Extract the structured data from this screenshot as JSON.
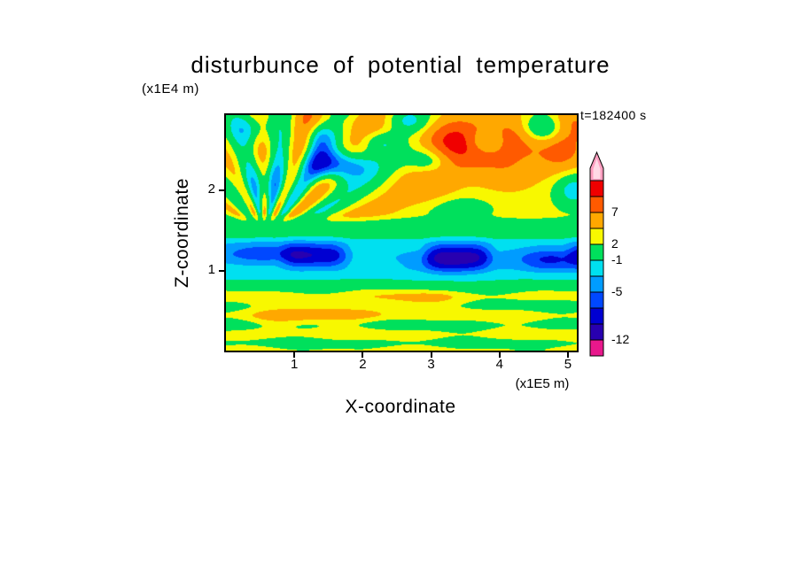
{
  "page": {
    "background": "#ffffff"
  },
  "title": "disturbunce of potential temperature",
  "annotations": {
    "time": "t=182400 s",
    "y_unit": "(x1E4 m)",
    "x_unit": "(x1E5 m)"
  },
  "axes": {
    "x_title": "X-coordinate",
    "y_title": "Z-coordinate",
    "x_ticks": [
      "1",
      "2",
      "3",
      "4",
      "5"
    ],
    "y_ticks": [
      "1",
      "2"
    ]
  },
  "colorbar": {
    "segments": [
      "#e8188c",
      "#2800b0",
      "#0000d2",
      "#0048ff",
      "#009cff",
      "#00e0f0",
      "#00e05c",
      "#f8f800",
      "#ffa800",
      "#ff5a00",
      "#f00000"
    ],
    "arrow_outer": "#ff9ec0",
    "arrow_inner": "#ffd9e6",
    "labels": [
      {
        "text": "-12",
        "boundary": 1
      },
      {
        "text": "-5",
        "boundary": 4
      },
      {
        "text": "-1",
        "boundary": 6
      },
      {
        "text": "2",
        "boundary": 7
      },
      {
        "text": "7",
        "boundary": 9
      }
    ]
  },
  "chart_data": {
    "type": "heatmap",
    "title": "disturbunce of potential temperature",
    "xlabel": "X-coordinate",
    "ylabel": "Z-coordinate",
    "x_units": "1E5 m",
    "z_units": "1E4 m",
    "time_label": "t=182400 s",
    "time_seconds": 182400,
    "x_range": [
      0,
      5.13
    ],
    "z_range": [
      0,
      2.946
    ],
    "x_tick_values": [
      1,
      2,
      3,
      4,
      5
    ],
    "z_tick_values": [
      1,
      2
    ],
    "colorbar_tick_values": [
      7,
      2,
      -1,
      -5,
      -12
    ],
    "levels": [
      -12,
      -9.5,
      -7,
      -5,
      -3,
      -1,
      2,
      4,
      7,
      10,
      13
    ],
    "colors": [
      "#e8188c",
      "#2800b0",
      "#0000d2",
      "#0048ff",
      "#009cff",
      "#00e0f0",
      "#00e05c",
      "#f8f800",
      "#ffa800",
      "#ff5a00",
      "#f00000",
      "#ff9ec0"
    ],
    "field_model": {
      "bands": [
        [
          0,
          2.6
        ],
        [
          0.09,
          1.0
        ],
        [
          0.2,
          3.1
        ],
        [
          0.32,
          1.0
        ],
        [
          0.44,
          3.2
        ],
        [
          0.56,
          1.1
        ],
        [
          0.68,
          3.0
        ],
        [
          0.8,
          0.6
        ],
        [
          0.93,
          -1.4
        ],
        [
          1.05,
          -2.2
        ],
        [
          1.18,
          -2.6
        ],
        [
          1.32,
          -2.2
        ],
        [
          1.45,
          -0.2
        ],
        [
          1.58,
          1.0
        ],
        [
          1.72,
          2.8
        ],
        [
          2.0,
          2.9
        ],
        [
          2.95,
          3.0
        ]
      ],
      "wobble": {
        "a1": 0.75,
        "f1x": 2.4,
        "f1z": 9.5,
        "p1": 1.0,
        "a2": 0.35,
        "f2x": 5.1,
        "f2z": -3.0,
        "fade0": 0.75,
        "fade1": 0.95
      },
      "cold_band": {
        "z": 1.19,
        "sz": 0.155,
        "amp": -5.8,
        "fx": 3.0,
        "ph": 3.95,
        "s0": -0.25,
        "s1": 0.85
      },
      "fan": {
        "zmin": 1.45,
        "x0": 0.55,
        "z0": 1.42,
        "cx": 1.25,
        "w": 1.55,
        "amp": 3.8,
        "freq": 13,
        "rad": 1.2,
        "ph": 0.6,
        "bias": -0.3,
        "fade0": 1.55,
        "fade1": 1.75
      },
      "blobs": [
        [
          1.62,
          2.32,
          0.3,
          0.13,
          -11
        ],
        [
          2.62,
          2.86,
          0.24,
          0.12,
          -8
        ],
        [
          4.62,
          2.78,
          0.24,
          0.13,
          -9
        ],
        [
          2.98,
          2.38,
          0.22,
          0.12,
          -5.5
        ],
        [
          3.78,
          2.62,
          0.18,
          0.1,
          -4.5
        ],
        [
          2.25,
          2.62,
          0.2,
          0.1,
          -4
        ],
        [
          5.08,
          2.02,
          0.2,
          0.16,
          -5.5
        ],
        [
          0.62,
          2.08,
          0.3,
          0.2,
          -4.5
        ],
        [
          0.35,
          2.78,
          0.2,
          0.14,
          -5
        ],
        [
          1.35,
          2.68,
          0.14,
          0.18,
          -4.5
        ],
        [
          3.45,
          1.78,
          0.3,
          0.1,
          -2.5
        ],
        [
          3.35,
          2.6,
          0.36,
          0.22,
          8.5
        ],
        [
          4.32,
          2.72,
          0.3,
          0.18,
          5.5
        ],
        [
          2.52,
          2.82,
          0.26,
          0.13,
          4.5
        ],
        [
          4.92,
          2.5,
          0.26,
          0.22,
          5
        ],
        [
          4.1,
          2.3,
          0.35,
          0.22,
          3.5
        ],
        [
          2.95,
          2.1,
          0.3,
          0.16,
          3
        ],
        [
          5.05,
          2.85,
          0.25,
          0.15,
          4
        ],
        [
          1.45,
          2.88,
          0.3,
          0.12,
          3
        ],
        [
          4.75,
          1.13,
          0.35,
          0.1,
          -5
        ],
        [
          0.55,
          1.22,
          0.45,
          0.09,
          -4
        ],
        [
          3.3,
          1.1,
          0.4,
          0.1,
          -4
        ],
        [
          1.35,
          0.52,
          0.45,
          0.1,
          2.2
        ],
        [
          0.75,
          0.35,
          0.3,
          0.09,
          1.8
        ],
        [
          2.15,
          0.5,
          0.35,
          0.09,
          1.8
        ],
        [
          2.75,
          0.62,
          0.4,
          0.09,
          1.5
        ]
      ]
    }
  }
}
